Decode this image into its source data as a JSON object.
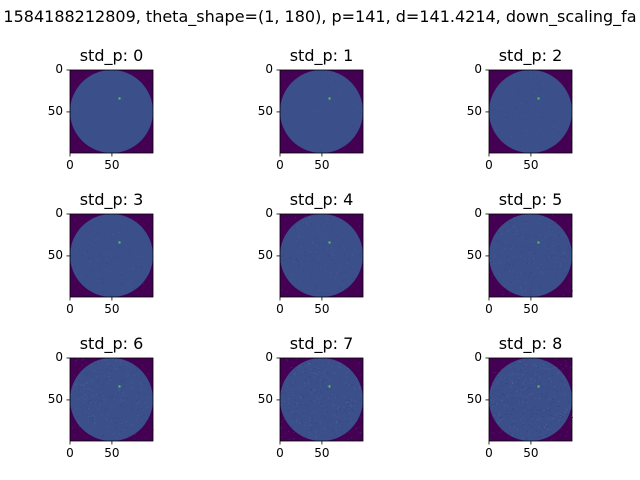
{
  "figure": {
    "suptitle": "1584188212809, theta_shape=(1, 180), p=141, d=141.4214, down_scaling_fa"
  },
  "colors": {
    "background": "#440154",
    "disk_base": "#3b4f8a",
    "marker": "#5ec962",
    "axis": "#000000"
  },
  "chart_data": [
    {
      "type": "heatmap",
      "title": "std_p: 0",
      "xticks": [
        "0",
        "50"
      ],
      "yticks": [
        "0",
        "50"
      ],
      "xlim": [
        0,
        99
      ],
      "ylim": [
        99,
        0
      ],
      "marker": [
        59,
        34
      ],
      "noise_level": 0
    },
    {
      "type": "heatmap",
      "title": "std_p: 1",
      "xticks": [
        "0",
        "50"
      ],
      "yticks": [
        "0",
        "50"
      ],
      "xlim": [
        0,
        99
      ],
      "ylim": [
        99,
        0
      ],
      "marker": [
        59,
        34
      ],
      "noise_level": 1
    },
    {
      "type": "heatmap",
      "title": "std_p: 2",
      "xticks": [
        "0",
        "50"
      ],
      "yticks": [
        "0",
        "50"
      ],
      "xlim": [
        0,
        99
      ],
      "ylim": [
        99,
        0
      ],
      "marker": [
        59,
        34
      ],
      "noise_level": 2
    },
    {
      "type": "heatmap",
      "title": "std_p: 3",
      "xticks": [
        "0",
        "50"
      ],
      "yticks": [
        "0",
        "50"
      ],
      "xlim": [
        0,
        99
      ],
      "ylim": [
        99,
        0
      ],
      "marker": [
        59,
        34
      ],
      "noise_level": 3
    },
    {
      "type": "heatmap",
      "title": "std_p: 4",
      "xticks": [
        "0",
        "50"
      ],
      "yticks": [
        "0",
        "50"
      ],
      "xlim": [
        0,
        99
      ],
      "ylim": [
        99,
        0
      ],
      "marker": [
        59,
        34
      ],
      "noise_level": 4
    },
    {
      "type": "heatmap",
      "title": "std_p: 5",
      "xticks": [
        "0",
        "50"
      ],
      "yticks": [
        "0",
        "50"
      ],
      "xlim": [
        0,
        99
      ],
      "ylim": [
        99,
        0
      ],
      "marker": [
        59,
        34
      ],
      "noise_level": 5
    },
    {
      "type": "heatmap",
      "title": "std_p: 6",
      "xticks": [
        "0",
        "50"
      ],
      "yticks": [
        "0",
        "50"
      ],
      "xlim": [
        0,
        99
      ],
      "ylim": [
        99,
        0
      ],
      "marker": [
        59,
        34
      ],
      "noise_level": 6
    },
    {
      "type": "heatmap",
      "title": "std_p: 7",
      "xticks": [
        "0",
        "50"
      ],
      "yticks": [
        "0",
        "50"
      ],
      "xlim": [
        0,
        99
      ],
      "ylim": [
        99,
        0
      ],
      "marker": [
        59,
        34
      ],
      "noise_level": 7
    },
    {
      "type": "heatmap",
      "title": "std_p: 8",
      "xticks": [
        "0",
        "50"
      ],
      "yticks": [
        "0",
        "50"
      ],
      "xlim": [
        0,
        99
      ],
      "ylim": [
        99,
        0
      ],
      "marker": [
        59,
        34
      ],
      "noise_level": 8
    }
  ]
}
